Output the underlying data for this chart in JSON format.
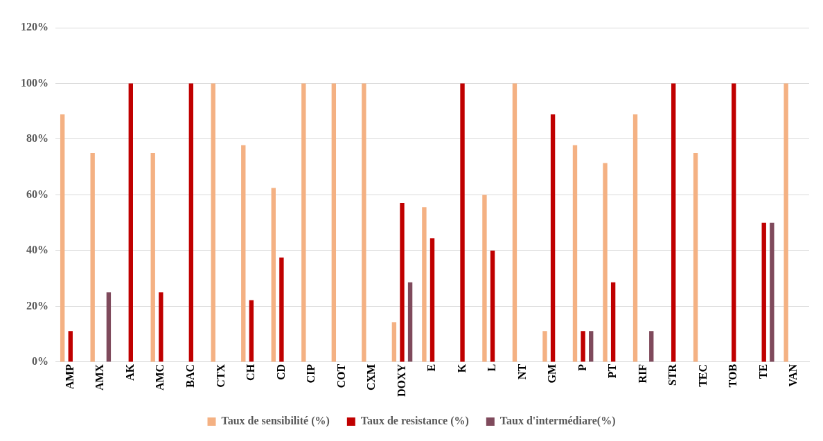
{
  "chart_data": {
    "type": "bar",
    "categories": [
      "AMP",
      "AMX",
      "AK",
      "AMC",
      "BAC",
      "CTX",
      "CH",
      "CD",
      "CIP",
      "COT",
      "CXM",
      "DOXY",
      "E",
      "K",
      "L",
      "NT",
      "GM",
      "P",
      "PT",
      "RIF",
      "STR",
      "TEC",
      "TOB",
      "TE",
      "VAN"
    ],
    "series": [
      {
        "name": "Taux de sensibilité (%)",
        "color": "#f4b183",
        "values": [
          88.9,
          75,
          0,
          75,
          0,
          100,
          77.8,
          62.5,
          100,
          100,
          100,
          14.3,
          55.6,
          0,
          60,
          100,
          11.1,
          77.8,
          71.4,
          88.9,
          0,
          75,
          0,
          0,
          100
        ]
      },
      {
        "name": "Taux de resistance (%)",
        "color": "#c00000",
        "values": [
          11.1,
          0,
          100,
          25,
          100,
          0,
          22.2,
          37.5,
          0,
          0,
          0,
          57.1,
          44.4,
          100,
          40,
          0,
          88.9,
          11.1,
          28.6,
          0,
          100,
          0,
          100,
          50,
          0
        ]
      },
      {
        "name": "Taux d'intermédiare(%)",
        "color": "#7f4a5c",
        "values": [
          0,
          25,
          0,
          0,
          0,
          0,
          0,
          0,
          0,
          0,
          0,
          28.6,
          0,
          0,
          0,
          0,
          0,
          11.1,
          0,
          11.1,
          0,
          0,
          0,
          50,
          0
        ]
      }
    ],
    "ylim": [
      0,
      120
    ],
    "yticks": [
      {
        "value": 0,
        "label": "0%"
      },
      {
        "value": 20,
        "label": "20%"
      },
      {
        "value": 40,
        "label": "40%"
      },
      {
        "value": 60,
        "label": "60%"
      },
      {
        "value": 80,
        "label": "80%"
      },
      {
        "value": 100,
        "label": "100%"
      },
      {
        "value": 120,
        "label": "120%"
      }
    ],
    "grid": "y",
    "legend": "bottom"
  }
}
